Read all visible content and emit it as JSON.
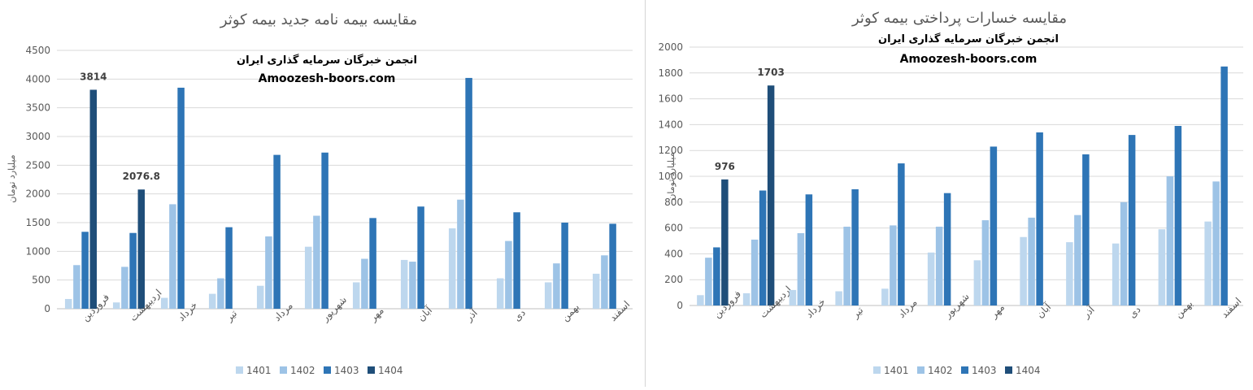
{
  "chart_data": [
    {
      "type": "bar",
      "title": "مقایسه بیمه نامه جدید بیمه کوثر",
      "watermark_line1": "انجمن خبرگان سرمایه گذاری ایران",
      "watermark_line2": "Amoozesh-boors.com",
      "ylabel": "میلیارد تومان",
      "ylim": [
        0,
        4500
      ],
      "yticks": [
        0,
        500,
        1000,
        1500,
        2000,
        2500,
        3000,
        3500,
        4000,
        4500
      ],
      "grid": true,
      "legend_position": "bottom",
      "categories": [
        "فروردین",
        "اردیبهشت",
        "خرداد",
        "تیر",
        "مرداد",
        "شهریور",
        "مهر",
        "آبان",
        "آذر",
        "دی",
        "بهمن",
        "اسفند"
      ],
      "series": [
        {
          "name": "1401",
          "color": "#bdd7ee",
          "values": [
            170,
            110,
            190,
            260,
            400,
            1080,
            460,
            850,
            1400,
            530,
            460,
            610
          ]
        },
        {
          "name": "1402",
          "color": "#9dc3e6",
          "values": [
            760,
            730,
            1820,
            530,
            1260,
            1620,
            870,
            820,
            1900,
            1180,
            790,
            930
          ]
        },
        {
          "name": "1403",
          "color": "#2e75b6",
          "values": [
            1340,
            1320,
            3850,
            1420,
            2680,
            2720,
            1580,
            1780,
            4020,
            1680,
            1500,
            1480
          ]
        },
        {
          "name": "1404",
          "color": "#1f4e79",
          "values": [
            3814,
            2076.8,
            null,
            null,
            null,
            null,
            null,
            null,
            null,
            null,
            null,
            null
          ]
        }
      ],
      "data_labels": [
        {
          "series": "1404",
          "category_index": 0,
          "text": "3814"
        },
        {
          "series": "1404",
          "category_index": 1,
          "text": "2076.8"
        }
      ]
    },
    {
      "type": "bar",
      "title": "مقایسه خسارات پرداختی بیمه کوثر",
      "watermark_line1": "انجمن خبرگان سرمایه گذاری ایران",
      "watermark_line2": "Amoozesh-boors.com",
      "ylabel": "میلیارد تومان",
      "ylim": [
        0,
        2000
      ],
      "yticks": [
        0,
        200,
        400,
        600,
        800,
        1000,
        1200,
        1400,
        1600,
        1800,
        2000
      ],
      "grid": true,
      "legend_position": "bottom",
      "categories": [
        "فروردین",
        "اردیبهشت",
        "خرداد",
        "تیر",
        "مرداد",
        "شهریور",
        "مهر",
        "آبان",
        "آذر",
        "دی",
        "بهمن",
        "اسفند"
      ],
      "series": [
        {
          "name": "1401",
          "color": "#bdd7ee",
          "values": [
            80,
            95,
            120,
            110,
            130,
            410,
            350,
            530,
            490,
            480,
            590,
            650
          ]
        },
        {
          "name": "1402",
          "color": "#9dc3e6",
          "values": [
            370,
            510,
            560,
            610,
            620,
            610,
            660,
            680,
            700,
            800,
            1000,
            960
          ]
        },
        {
          "name": "1403",
          "color": "#2e75b6",
          "values": [
            450,
            890,
            860,
            900,
            1100,
            870,
            1230,
            1340,
            1170,
            1320,
            1390,
            1850
          ]
        },
        {
          "name": "1404",
          "color": "#1f4e79",
          "values": [
            976,
            1703,
            null,
            null,
            null,
            null,
            null,
            null,
            null,
            null,
            null,
            null
          ]
        }
      ],
      "data_labels": [
        {
          "series": "1404",
          "category_index": 0,
          "text": "976"
        },
        {
          "series": "1404",
          "category_index": 1,
          "text": "1703"
        }
      ]
    }
  ]
}
